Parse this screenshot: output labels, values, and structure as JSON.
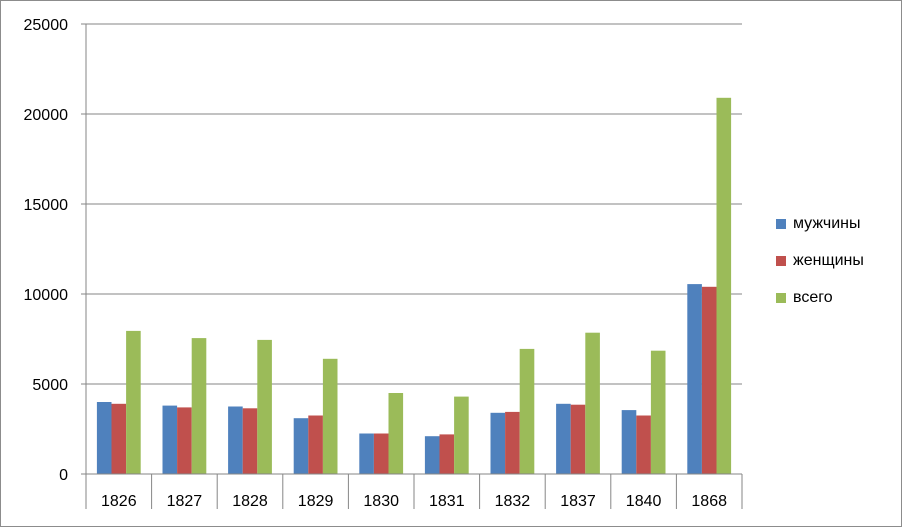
{
  "chart_data": {
    "type": "bar",
    "categories": [
      "1826",
      "1827",
      "1828",
      "1829",
      "1830",
      "1831",
      "1832",
      "1837",
      "1840",
      "1868"
    ],
    "series": [
      {
        "name": "мужчины",
        "color": "#4F81BD",
        "values": [
          4000,
          3800,
          3750,
          3100,
          2250,
          2100,
          3400,
          3900,
          3550,
          10550
        ]
      },
      {
        "name": "женщины",
        "color": "#C0504D",
        "values": [
          3900,
          3700,
          3650,
          3250,
          2250,
          2200,
          3450,
          3850,
          3250,
          10400
        ]
      },
      {
        "name": "всего",
        "color": "#9BBB59",
        "values": [
          7950,
          7550,
          7450,
          6400,
          4500,
          4300,
          6950,
          7850,
          6850,
          20900
        ]
      }
    ],
    "ylim": [
      0,
      25000
    ],
    "yticks": [
      0,
      5000,
      10000,
      15000,
      20000,
      25000
    ],
    "grid": true,
    "legend": "right"
  }
}
